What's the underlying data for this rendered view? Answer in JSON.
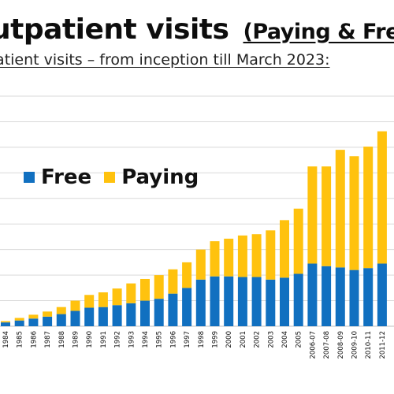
{
  "title": {
    "main": "utpatient visits",
    "paren": "(Paying & Fre"
  },
  "subtitle": "patient visits – from inception till March 2023:",
  "colors": {
    "free": "#1170c0",
    "paying": "#ffc20e",
    "grid": "#d9d9d9"
  },
  "chart_data": {
    "type": "bar",
    "stacked": true,
    "title": "",
    "xlabel": "",
    "ylabel": "",
    "ylim": [
      0,
      1800000
    ],
    "grid": true,
    "legend_position": "top-left",
    "categories": [
      "1984",
      "1985",
      "1986",
      "1987",
      "1988",
      "1989",
      "1990",
      "1991",
      "1992",
      "1993",
      "1994",
      "1995",
      "1996",
      "1997",
      "1998",
      "1999",
      "2000",
      "2001",
      "2002",
      "2003",
      "2004",
      "2005",
      "2006-07",
      "2007-08",
      "2008-09",
      "2009-10",
      "2010-11",
      "2011-12"
    ],
    "series": [
      {
        "name": "Free",
        "values": [
          30000,
          45000,
          60000,
          75000,
          95000,
          120000,
          145000,
          150000,
          165000,
          180000,
          200000,
          215000,
          255000,
          300000,
          365000,
          390000,
          390000,
          385000,
          385000,
          365000,
          380000,
          410000,
          490000,
          470000,
          460000,
          440000,
          455000,
          490000
        ]
      },
      {
        "name": "Paying",
        "values": [
          10000,
          20000,
          30000,
          40000,
          55000,
          80000,
          100000,
          115000,
          130000,
          155000,
          170000,
          185000,
          190000,
          200000,
          235000,
          275000,
          295000,
          325000,
          335000,
          385000,
          450000,
          510000,
          760000,
          780000,
          920000,
          890000,
          950000,
          1035000
        ]
      }
    ]
  }
}
